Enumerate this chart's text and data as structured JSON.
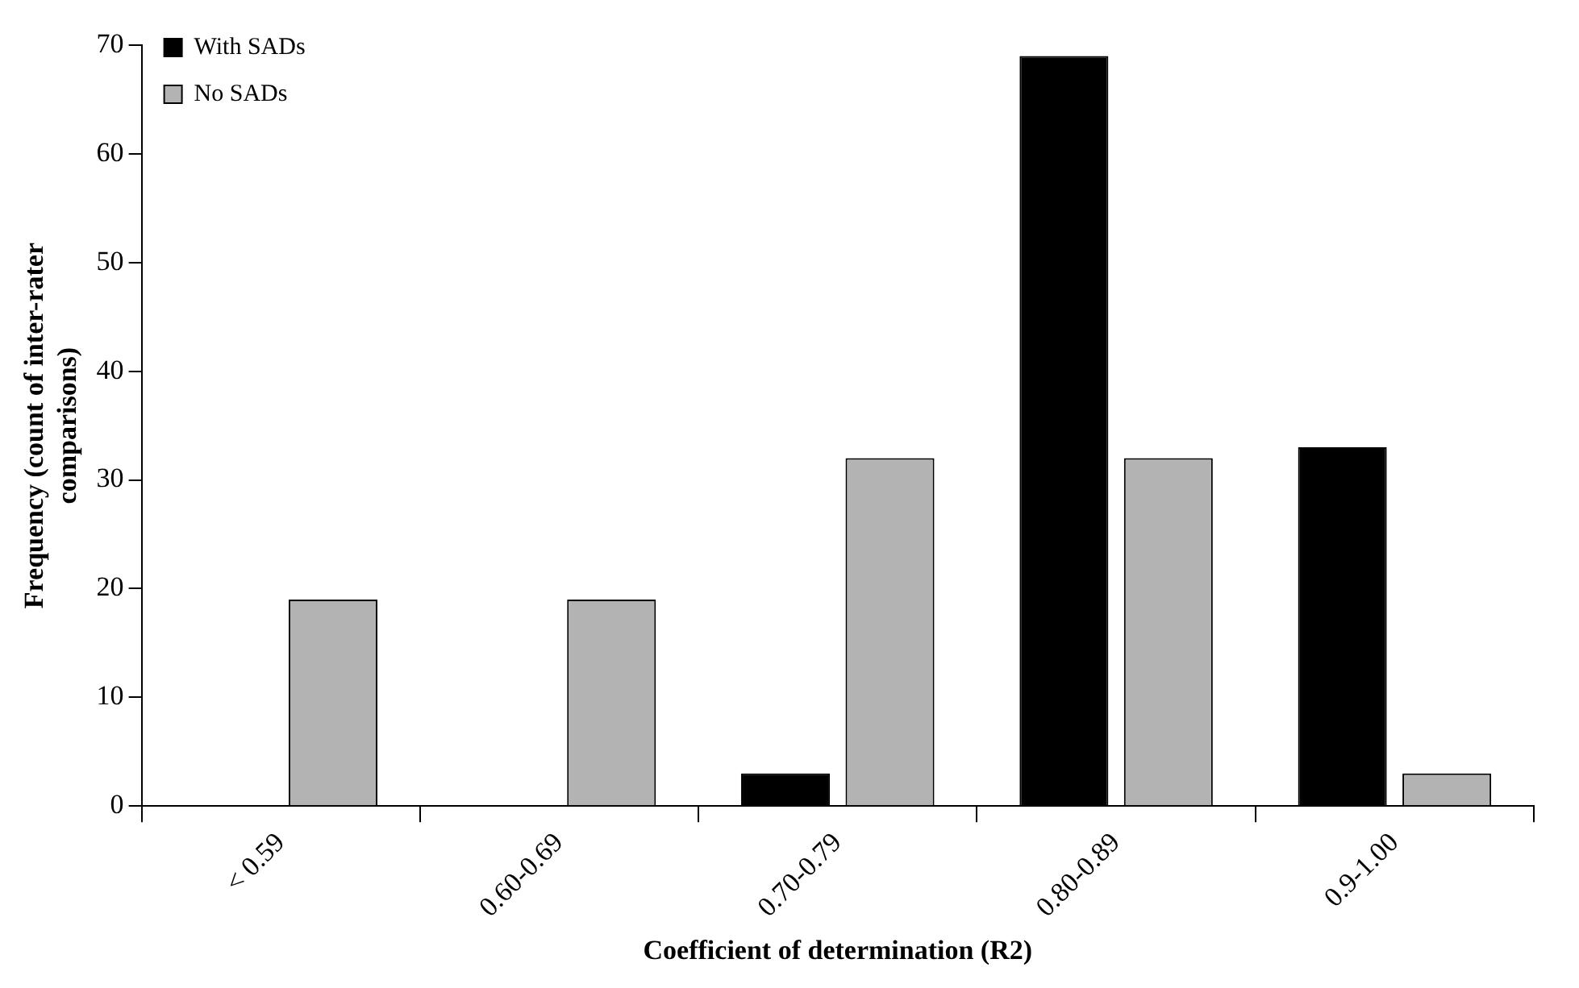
{
  "chart_data": {
    "type": "bar",
    "xlabel": "Coefficient of determination (R2)",
    "ylabel": "Frequency (count of inter-rater comparisons)",
    "categories": [
      "< 0.59",
      "0.60-0.69",
      "0.70-0.79",
      "0.80-0.89",
      "0.9-1.00"
    ],
    "series": [
      {
        "name": "With SADs",
        "color": "#000000",
        "values": [
          0,
          0,
          3,
          69,
          33
        ]
      },
      {
        "name": "No SADs",
        "color": "#b3b3b3",
        "values": [
          19,
          19,
          32,
          32,
          3
        ]
      }
    ],
    "ylim": [
      0,
      70
    ],
    "yticks": [
      0,
      10,
      20,
      30,
      40,
      50,
      60,
      70
    ],
    "grid": false,
    "legend": "top left"
  }
}
